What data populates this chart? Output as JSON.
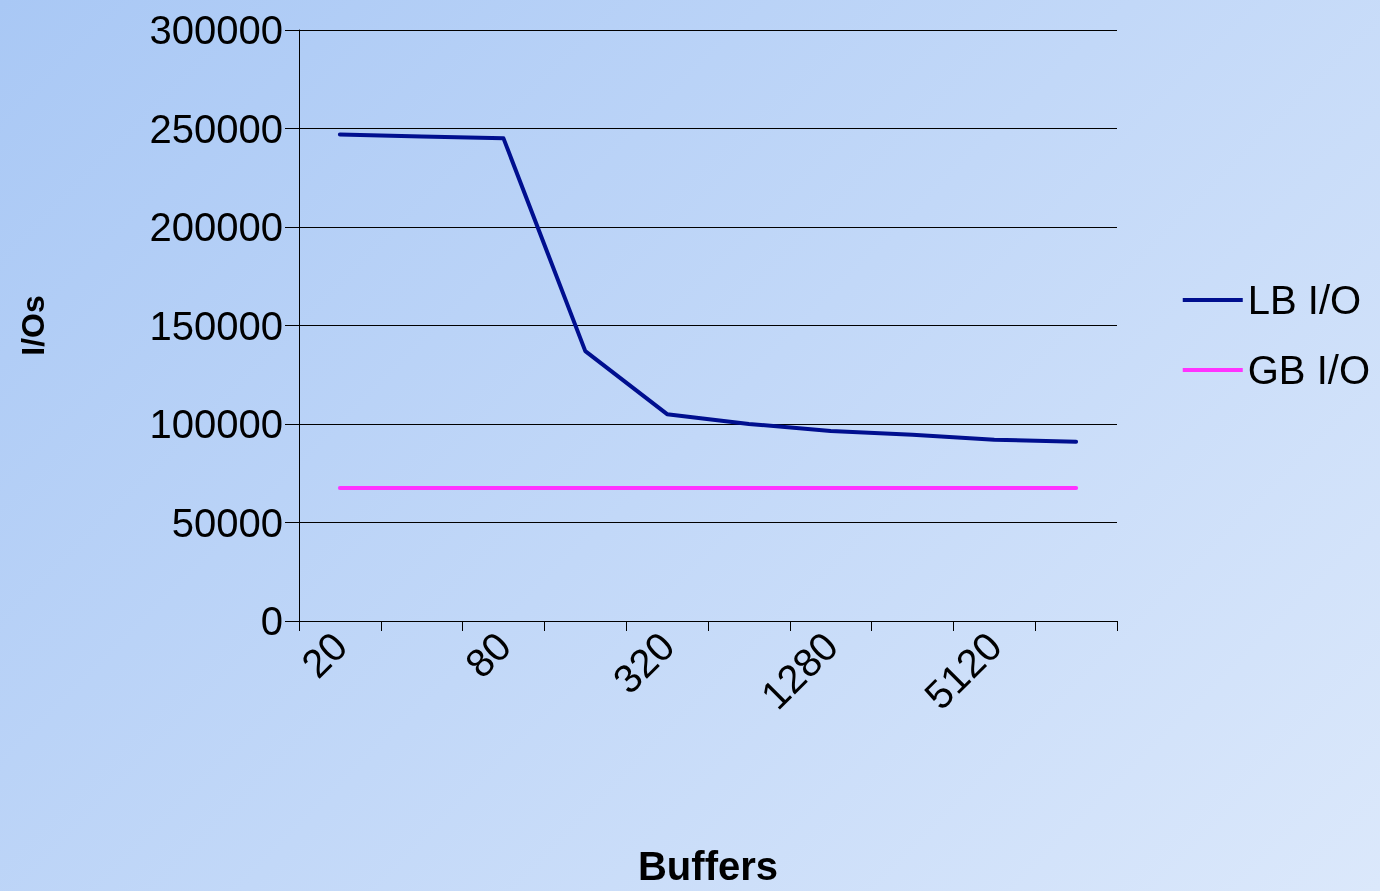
{
  "chart_data": {
    "type": "line",
    "xlabel": "Buffers",
    "ylabel": "I/Os",
    "categories": [
      "20",
      null,
      "80",
      null,
      "320",
      null,
      "1280",
      null,
      "5120",
      null
    ],
    "series": [
      {
        "name": "LB I/O",
        "color": "#000f8f",
        "values": [
          247000,
          246000,
          245000,
          137000,
          105000,
          100000,
          96500,
          94500,
          92000,
          91000
        ]
      },
      {
        "name": "GB I/O",
        "color": "#ff33ff",
        "values": [
          67500,
          67500,
          67500,
          67500,
          67500,
          67500,
          67500,
          67500,
          67500,
          67500
        ]
      }
    ],
    "ylim": [
      0,
      300000
    ],
    "yticks": [
      0,
      50000,
      100000,
      150000,
      200000,
      250000,
      300000
    ],
    "grid": "y",
    "legend": "right",
    "marker": "none",
    "line_style": "solid"
  }
}
